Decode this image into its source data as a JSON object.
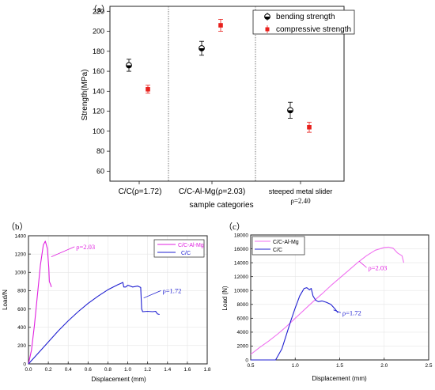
{
  "chart_data": [
    {
      "panel_label": "（a）",
      "type": "scatter",
      "categories": [
        "C/C(ρ=1.72)",
        "C/C-Al-Mg(ρ=2.03)",
        "steeped metal slider"
      ],
      "category_extra": [
        "",
        "",
        "ρ=2.40"
      ],
      "xlabel": "sample categories",
      "ylabel": "Strength(MPa)",
      "ylim": [
        50,
        225
      ],
      "yticks": [
        60,
        80,
        100,
        120,
        140,
        160,
        180,
        200,
        220
      ],
      "legend_placement": "top-right",
      "series": [
        {
          "name": "bending strength",
          "color": "#000000",
          "marker": "half-filled circle",
          "values": [
            166,
            183,
            121
          ],
          "errors": [
            6,
            7,
            8
          ]
        },
        {
          "name": "compressive strength",
          "color": "#e8201c",
          "marker": "square",
          "values": [
            142,
            206,
            104
          ],
          "errors": [
            4,
            6,
            5
          ]
        }
      ]
    },
    {
      "panel_label": "（b）",
      "type": "line",
      "xlabel": "Displacement (mm)",
      "ylabel": "Load/N",
      "xlim": [
        0,
        1.8
      ],
      "ylim": [
        0,
        1400
      ],
      "xticks": [
        0.0,
        0.2,
        0.4,
        0.6,
        0.8,
        1.0,
        1.2,
        1.4,
        1.6,
        1.8
      ],
      "yticks": [
        0,
        200,
        400,
        600,
        800,
        1000,
        1200,
        1400
      ],
      "legend_placement": "top-right",
      "annotations": [
        {
          "text": "ρ=2.03",
          "color": "#e020e0",
          "x": 0.48,
          "y": 1280,
          "ax": 0.23,
          "ay": 1170
        },
        {
          "text": "ρ=1.72",
          "color": "#1f1fd1",
          "x": 1.35,
          "y": 800,
          "ax": 1.16,
          "ay": 720
        }
      ],
      "series": [
        {
          "name": "C/C-Al-Mg",
          "color": "#e020e0",
          "x": [
            0.0,
            0.03,
            0.06,
            0.09,
            0.12,
            0.15,
            0.17,
            0.19,
            0.205,
            0.21,
            0.225,
            0.23
          ],
          "y": [
            0,
            150,
            420,
            750,
            1080,
            1300,
            1340,
            1260,
            1050,
            900,
            860,
            840
          ]
        },
        {
          "name": "C/C",
          "color": "#1f1fd1",
          "x": [
            0.0,
            0.1,
            0.2,
            0.3,
            0.4,
            0.5,
            0.6,
            0.7,
            0.8,
            0.9,
            0.93,
            0.95,
            0.96,
            0.98,
            1.0,
            1.05,
            1.1,
            1.13,
            1.14,
            1.15,
            1.2,
            1.25,
            1.28,
            1.3,
            1.32
          ],
          "y": [
            0,
            120,
            240,
            360,
            470,
            570,
            660,
            740,
            810,
            865,
            880,
            890,
            840,
            840,
            860,
            840,
            850,
            835,
            600,
            570,
            575,
            570,
            575,
            545,
            540
          ]
        }
      ]
    },
    {
      "panel_label": "（c）",
      "type": "line",
      "xlabel": "Displacement (mm)",
      "ylabel": "Load (N)",
      "xlim": [
        0.5,
        2.5
      ],
      "ylim": [
        0,
        18000
      ],
      "xticks": [
        0.5,
        1.0,
        1.5,
        2.0,
        2.5
      ],
      "yticks": [
        0,
        2000,
        4000,
        6000,
        8000,
        10000,
        12000,
        14000,
        16000,
        18000
      ],
      "legend_placement": "top-left",
      "annotations": [
        {
          "text": "ρ=2.03",
          "color": "#e020e0",
          "x": 1.82,
          "y": 13300,
          "ax": 1.72,
          "ay": 14200
        },
        {
          "text": "ρ=1.72",
          "color": "#1f1fd1",
          "x": 1.53,
          "y": 6800,
          "ax": 1.43,
          "ay": 7200
        }
      ],
      "series": [
        {
          "name": "C/C-Al-Mg",
          "color": "#f070f0",
          "x": [
            0.5,
            0.6,
            0.7,
            0.8,
            0.9,
            1.0,
            1.1,
            1.2,
            1.3,
            1.4,
            1.5,
            1.6,
            1.7,
            1.8,
            1.9,
            2.0,
            2.05,
            2.1,
            2.15,
            2.2,
            2.22
          ],
          "y": [
            800,
            1800,
            2700,
            3700,
            4800,
            6000,
            7200,
            8400,
            9500,
            10700,
            11800,
            12900,
            14000,
            15000,
            15800,
            16200,
            16250,
            16100,
            15400,
            15000,
            14000
          ]
        },
        {
          "name": "C/C",
          "color": "#1f1fd1",
          "x": [
            0.5,
            0.7,
            0.78,
            0.85,
            0.9,
            0.95,
            1.0,
            1.05,
            1.1,
            1.13,
            1.16,
            1.18,
            1.2,
            1.23,
            1.26,
            1.3,
            1.35,
            1.4,
            1.45,
            1.48
          ],
          "y": [
            0,
            0,
            0,
            1600,
            3600,
            5600,
            7500,
            9200,
            10300,
            10400,
            10100,
            10300,
            9200,
            8600,
            8400,
            8500,
            8300,
            8000,
            7300,
            6800
          ]
        }
      ]
    }
  ]
}
